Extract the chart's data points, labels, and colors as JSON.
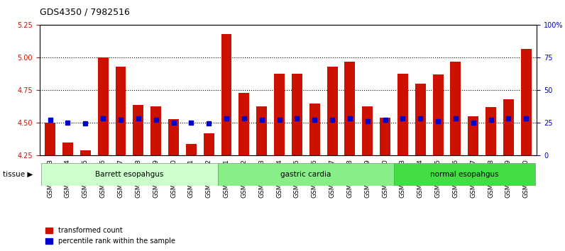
{
  "title": "GDS4350 / 7982516",
  "samples": [
    "GSM851983",
    "GSM851984",
    "GSM851985",
    "GSM851986",
    "GSM851987",
    "GSM851988",
    "GSM851989",
    "GSM851990",
    "GSM851991",
    "GSM851992",
    "GSM852001",
    "GSM852002",
    "GSM852003",
    "GSM852004",
    "GSM852005",
    "GSM852006",
    "GSM852007",
    "GSM852008",
    "GSM852009",
    "GSM852010",
    "GSM851993",
    "GSM851994",
    "GSM851995",
    "GSM851996",
    "GSM851997",
    "GSM851998",
    "GSM851999",
    "GSM852000"
  ],
  "bar_values": [
    4.5,
    4.35,
    4.29,
    5.0,
    4.93,
    4.64,
    4.63,
    4.53,
    4.34,
    4.42,
    5.18,
    4.73,
    4.63,
    4.88,
    4.88,
    4.65,
    4.93,
    4.97,
    4.63,
    4.54,
    4.88,
    4.8,
    4.87,
    4.97,
    4.55,
    4.62,
    4.68,
    5.07
  ],
  "percentile_values": [
    4.525,
    4.505,
    4.495,
    4.535,
    4.525,
    4.535,
    4.525,
    4.505,
    4.505,
    4.495,
    4.535,
    4.535,
    4.525,
    4.525,
    4.535,
    4.525,
    4.525,
    4.535,
    4.515,
    4.525,
    4.535,
    4.535,
    4.515,
    4.535,
    4.505,
    4.525,
    4.535,
    4.535
  ],
  "groups": [
    {
      "label": "Barrett esopahgus",
      "start": 0,
      "end": 10,
      "color": "#ccffcc"
    },
    {
      "label": "gastric cardia",
      "start": 10,
      "end": 20,
      "color": "#88ee88"
    },
    {
      "label": "normal esopahgus",
      "start": 20,
      "end": 28,
      "color": "#44dd44"
    }
  ],
  "bar_color": "#cc1100",
  "marker_color": "#0000cc",
  "ylim": [
    4.25,
    5.25
  ],
  "yticks": [
    4.25,
    4.5,
    4.75,
    5.0,
    5.25
  ],
  "y_right_ticks": [
    0,
    25,
    50,
    75,
    100
  ],
  "y_right_labels": [
    "0",
    "25",
    "50",
    "75",
    "100%"
  ],
  "grid_values": [
    4.5,
    4.75,
    5.0
  ],
  "bar_width": 0.6,
  "bg_color": "#ffffff",
  "plot_bg": "#ffffff",
  "tick_label_fontsize": 6.5,
  "axis_label_color_left": "#cc1100",
  "axis_label_color_right": "#0000cc"
}
